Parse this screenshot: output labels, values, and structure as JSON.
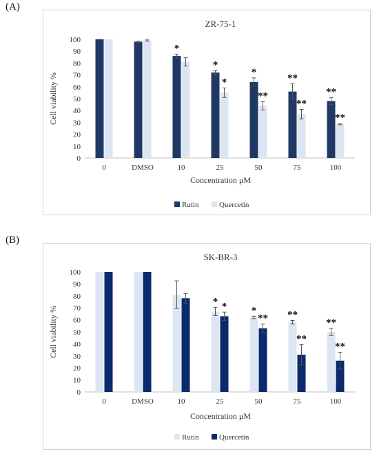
{
  "panels": [
    {
      "label": "(A)",
      "chart_data": {
        "type": "bar",
        "title": "ZR-75-1",
        "xlabel": "Concentration μM",
        "ylabel": "Cell viability %",
        "ylim": [
          0,
          100
        ],
        "yticks": [
          "0",
          "10",
          "20",
          "30",
          "40",
          "50",
          "60",
          "70",
          "80",
          "90",
          "100"
        ],
        "categories": [
          "0",
          "DMSO",
          "10",
          "25",
          "50",
          "75",
          "100"
        ],
        "grid": false,
        "legend_position": "bottom",
        "series": [
          {
            "name": "Rutin",
            "color": "#1f3864",
            "values": [
              100,
              98,
              86,
              72,
              64,
              56,
              48
            ],
            "errors": [
              0,
              0.5,
              1.5,
              1.5,
              3.5,
              6.5,
              3
            ],
            "significance": [
              "",
              "",
              "*",
              "*",
              "*",
              "**",
              "**"
            ]
          },
          {
            "name": "Quercetin",
            "color": "#dce6f2",
            "values": [
              100,
              99,
              81,
              55,
              44,
              37,
              28.5
            ],
            "errors": [
              0,
              0.5,
              3.5,
              4,
              3.5,
              4,
              0.5
            ],
            "significance": [
              "",
              "",
              "",
              "*",
              "**",
              "**",
              "**"
            ]
          }
        ]
      }
    },
    {
      "label": "(B)",
      "chart_data": {
        "type": "bar",
        "title": "SK-BR-3",
        "xlabel": "Concentration μM",
        "ylabel": "Cell viability %",
        "ylim": [
          0,
          100
        ],
        "yticks": [
          "0",
          "10",
          "20",
          "30",
          "40",
          "50",
          "60",
          "70",
          "80",
          "90",
          "100"
        ],
        "categories": [
          "0",
          "DMSO",
          "10",
          "25",
          "50",
          "75",
          "100"
        ],
        "grid": false,
        "legend_position": "bottom",
        "series": [
          {
            "name": "Rutin",
            "color": "#dce6f2",
            "values": [
              100,
              100,
              81,
              67,
              62,
              58,
              50
            ],
            "errors": [
              0,
              0,
              11.5,
              3.5,
              1,
              1.5,
              3
            ],
            "significance": [
              "",
              "",
              "",
              "*",
              "*",
              "**",
              "**"
            ]
          },
          {
            "name": "Quercetin",
            "color": "#0b2a6e",
            "values": [
              100,
              100,
              78,
              63,
              53,
              31,
              26
            ],
            "errors": [
              0,
              0,
              4,
              3.5,
              3.5,
              8.5,
              7
            ],
            "significance": [
              "",
              "",
              "",
              "*",
              "**",
              "**",
              "**"
            ]
          }
        ]
      }
    }
  ]
}
